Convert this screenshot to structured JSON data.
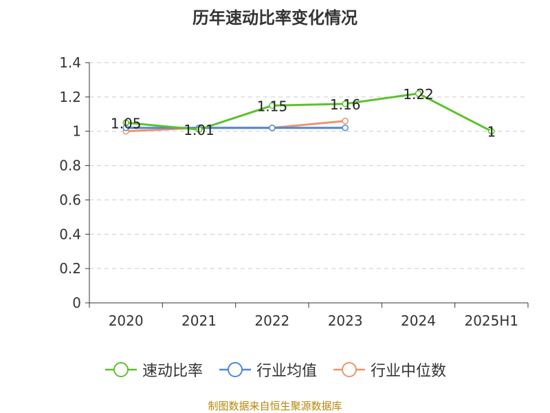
{
  "title": "历年速动比率变化情况",
  "source": "制图数据来自恒生聚源数据库",
  "chart_data": {
    "type": "line",
    "categories": [
      "2020",
      "2021",
      "2022",
      "2023",
      "2024",
      "2025H1"
    ],
    "ylim": [
      0,
      1.4
    ],
    "yticks": [
      0,
      0.2,
      0.4,
      0.6,
      0.8,
      1,
      1.2,
      1.4
    ],
    "ytick_labels": [
      "0",
      "0.2",
      "0.4",
      "0.6",
      "0.8",
      "1",
      "1.2",
      "1.4"
    ],
    "grid": true,
    "legend_position": "bottom",
    "series": [
      {
        "name": "速动比率",
        "color": "#5cc12d",
        "values": [
          1.05,
          1.01,
          1.15,
          1.16,
          1.22,
          1.0
        ],
        "labels": [
          "1.05",
          "1.01",
          "1.15",
          "1.16",
          "1.22",
          "1"
        ]
      },
      {
        "name": "行业均值",
        "color": "#4e86d9",
        "values": [
          1.02,
          1.02,
          1.02,
          1.02,
          null,
          null
        ],
        "labels": []
      },
      {
        "name": "行业中位数",
        "color": "#f0936a",
        "values": [
          1.0,
          1.02,
          1.02,
          1.06,
          null,
          null
        ],
        "labels": []
      }
    ]
  }
}
